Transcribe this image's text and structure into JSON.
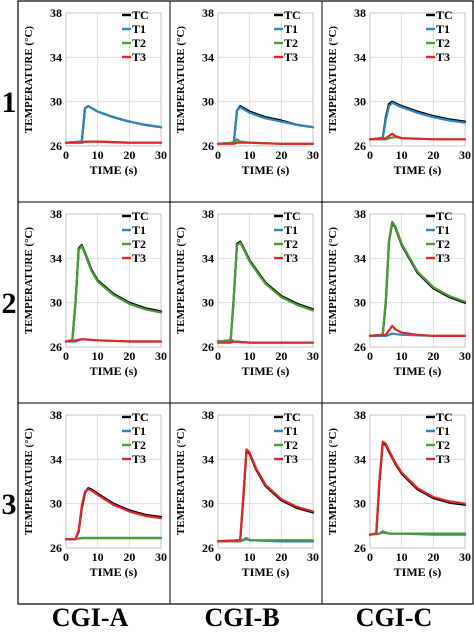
{
  "figure": {
    "row_labels": [
      "1",
      "2",
      "3"
    ],
    "column_labels": [
      "CGI-A",
      "CGI-B",
      "CGI-C"
    ]
  },
  "legend_entries": [
    "TC",
    "T1",
    "T2",
    "T3"
  ],
  "colors": {
    "TC": "#000000",
    "T1": "#2e86c1",
    "T2": "#4a9a3a",
    "T3": "#e0262a"
  },
  "chart_data": [
    {
      "type": "line",
      "row": "1",
      "column": "CGI-A",
      "xlabel": "TIME (s)",
      "ylabel": "TEMPERATURE (°C)",
      "xlim": [
        0,
        30
      ],
      "ylim": [
        26,
        38
      ],
      "xticks": [
        0,
        10,
        20,
        30
      ],
      "yticks": [
        26,
        30,
        34,
        38
      ],
      "grid": true,
      "legend": "top-right",
      "series": [
        {
          "name": "TC",
          "x": [
            0,
            5,
            6,
            7,
            10,
            15,
            20,
            25,
            30
          ],
          "y": [
            26.3,
            26.4,
            29.4,
            29.6,
            29.1,
            28.6,
            28.2,
            27.9,
            27.7
          ]
        },
        {
          "name": "T1",
          "x": [
            0,
            5,
            6,
            7,
            10,
            15,
            20,
            25,
            30
          ],
          "y": [
            26.3,
            26.4,
            29.4,
            29.6,
            29.1,
            28.6,
            28.2,
            27.9,
            27.7
          ]
        },
        {
          "name": "T2",
          "x": [
            0,
            5,
            6,
            10,
            20,
            30
          ],
          "y": [
            26.3,
            26.3,
            26.4,
            26.4,
            26.3,
            26.3
          ]
        },
        {
          "name": "T3",
          "x": [
            0,
            5,
            6,
            10,
            20,
            30
          ],
          "y": [
            26.3,
            26.3,
            26.4,
            26.4,
            26.3,
            26.3
          ]
        }
      ]
    },
    {
      "type": "line",
      "row": "1",
      "column": "CGI-B",
      "xlabel": "TIME (s)",
      "ylabel": "TEMPERATURE (°C)",
      "xlim": [
        0,
        30
      ],
      "ylim": [
        26,
        38
      ],
      "xticks": [
        0,
        10,
        20,
        30
      ],
      "yticks": [
        26,
        30,
        34,
        38
      ],
      "grid": true,
      "legend": "top-right",
      "series": [
        {
          "name": "TC",
          "x": [
            0,
            5,
            6,
            7,
            10,
            15,
            20,
            25,
            30
          ],
          "y": [
            26.2,
            26.3,
            29.2,
            29.6,
            29.1,
            28.6,
            28.3,
            27.9,
            27.7
          ]
        },
        {
          "name": "T1",
          "x": [
            0,
            5,
            6,
            7,
            10,
            15,
            20,
            25,
            30
          ],
          "y": [
            26.2,
            26.3,
            29.2,
            29.5,
            29.0,
            28.5,
            28.2,
            27.9,
            27.7
          ]
        },
        {
          "name": "T2",
          "x": [
            0,
            5,
            6,
            7,
            10,
            20,
            30
          ],
          "y": [
            26.2,
            26.3,
            26.6,
            26.4,
            26.3,
            26.2,
            26.2
          ]
        },
        {
          "name": "T3",
          "x": [
            0,
            5,
            6,
            10,
            20,
            30
          ],
          "y": [
            26.2,
            26.2,
            26.3,
            26.3,
            26.2,
            26.2
          ]
        }
      ]
    },
    {
      "type": "line",
      "row": "1",
      "column": "CGI-C",
      "xlabel": "TIME (s)",
      "ylabel": "TEMPERATURE (°C)",
      "xlim": [
        0,
        30
      ],
      "ylim": [
        26,
        38
      ],
      "xticks": [
        0,
        10,
        20,
        30
      ],
      "yticks": [
        26,
        30,
        34,
        38
      ],
      "grid": true,
      "legend": "top-right",
      "series": [
        {
          "name": "TC",
          "x": [
            0,
            4,
            5,
            6,
            7,
            10,
            15,
            20,
            25,
            30
          ],
          "y": [
            26.6,
            26.7,
            28.6,
            29.8,
            30.0,
            29.6,
            29.1,
            28.7,
            28.4,
            28.2
          ]
        },
        {
          "name": "T1",
          "x": [
            0,
            4,
            5,
            6,
            7,
            10,
            15,
            20,
            25,
            30
          ],
          "y": [
            26.6,
            26.7,
            28.4,
            29.6,
            29.9,
            29.5,
            29.0,
            28.6,
            28.3,
            28.1
          ]
        },
        {
          "name": "T2",
          "x": [
            0,
            5,
            6,
            8,
            10,
            20,
            30
          ],
          "y": [
            26.6,
            26.6,
            26.7,
            26.8,
            26.7,
            26.6,
            26.6
          ]
        },
        {
          "name": "T3",
          "x": [
            0,
            5,
            6,
            7,
            8,
            10,
            20,
            30
          ],
          "y": [
            26.6,
            26.7,
            26.9,
            27.1,
            26.9,
            26.7,
            26.6,
            26.6
          ]
        }
      ]
    },
    {
      "type": "line",
      "row": "2",
      "column": "CGI-A",
      "xlabel": "TIME (s)",
      "ylabel": "TEMPERATURE (°C)",
      "xlim": [
        0,
        30
      ],
      "ylim": [
        26,
        38
      ],
      "xticks": [
        0,
        10,
        20,
        30
      ],
      "yticks": [
        26,
        30,
        34,
        38
      ],
      "grid": true,
      "legend": "top-right",
      "series": [
        {
          "name": "TC",
          "x": [
            0,
            2,
            3,
            4,
            5,
            6,
            8,
            10,
            15,
            20,
            25,
            30
          ],
          "y": [
            26.5,
            26.6,
            30.0,
            34.9,
            35.2,
            34.5,
            33.0,
            32.0,
            30.8,
            30.0,
            29.5,
            29.2
          ]
        },
        {
          "name": "T1",
          "x": [
            0,
            3,
            5,
            10,
            20,
            30
          ],
          "y": [
            26.5,
            26.5,
            26.7,
            26.6,
            26.5,
            26.5
          ]
        },
        {
          "name": "T2",
          "x": [
            0,
            2,
            3,
            4,
            5,
            6,
            8,
            10,
            15,
            20,
            25,
            30
          ],
          "y": [
            26.5,
            26.6,
            30.0,
            34.8,
            35.1,
            34.4,
            32.9,
            31.9,
            30.7,
            29.9,
            29.4,
            29.1
          ]
        },
        {
          "name": "T3",
          "x": [
            0,
            3,
            5,
            10,
            20,
            30
          ],
          "y": [
            26.5,
            26.6,
            26.7,
            26.6,
            26.5,
            26.5
          ]
        }
      ]
    },
    {
      "type": "line",
      "row": "2",
      "column": "CGI-B",
      "xlabel": "TIME (s)",
      "ylabel": "TEMPERATURE (°C)",
      "xlim": [
        0,
        30
      ],
      "ylim": [
        26,
        38
      ],
      "xticks": [
        0,
        10,
        20,
        30
      ],
      "yticks": [
        26,
        30,
        34,
        38
      ],
      "grid": true,
      "legend": "top-right",
      "series": [
        {
          "name": "TC",
          "x": [
            0,
            4,
            5,
            6,
            7,
            8,
            10,
            15,
            20,
            25,
            30
          ],
          "y": [
            26.5,
            26.6,
            30.5,
            35.3,
            35.5,
            35.0,
            33.8,
            31.8,
            30.6,
            29.9,
            29.4
          ]
        },
        {
          "name": "T1",
          "x": [
            0,
            3,
            4,
            5,
            10,
            20,
            30
          ],
          "y": [
            26.4,
            26.5,
            26.7,
            26.5,
            26.4,
            26.4,
            26.4
          ]
        },
        {
          "name": "T2",
          "x": [
            0,
            4,
            5,
            6,
            7,
            8,
            10,
            15,
            20,
            25,
            30
          ],
          "y": [
            26.5,
            26.6,
            30.4,
            35.2,
            35.4,
            34.9,
            33.7,
            31.7,
            30.5,
            29.8,
            29.3
          ]
        },
        {
          "name": "T3",
          "x": [
            0,
            4,
            5,
            10,
            20,
            30
          ],
          "y": [
            26.4,
            26.4,
            26.5,
            26.4,
            26.4,
            26.4
          ]
        }
      ]
    },
    {
      "type": "line",
      "row": "2",
      "column": "CGI-C",
      "xlabel": "TIME (s)",
      "ylabel": "TEMPERATURE (°C)",
      "xlim": [
        0,
        30
      ],
      "ylim": [
        26,
        38
      ],
      "xticks": [
        0,
        10,
        20,
        30
      ],
      "yticks": [
        26,
        30,
        34,
        38
      ],
      "grid": true,
      "legend": "top-right",
      "series": [
        {
          "name": "TC",
          "x": [
            0,
            4,
            5,
            6,
            7,
            8,
            10,
            15,
            20,
            25,
            30
          ],
          "y": [
            27.0,
            27.1,
            30.0,
            35.5,
            37.2,
            36.8,
            35.2,
            32.7,
            31.3,
            30.5,
            30.0
          ]
        },
        {
          "name": "T1",
          "x": [
            0,
            5,
            7,
            10,
            20,
            30
          ],
          "y": [
            27.0,
            27.0,
            27.2,
            27.1,
            27.0,
            27.0
          ]
        },
        {
          "name": "T2",
          "x": [
            0,
            4,
            5,
            6,
            7,
            8,
            10,
            15,
            20,
            25,
            30
          ],
          "y": [
            27.0,
            27.1,
            30.2,
            35.6,
            37.3,
            36.9,
            35.3,
            32.8,
            31.4,
            30.6,
            30.1
          ]
        },
        {
          "name": "T3",
          "x": [
            0,
            5,
            6,
            7,
            8,
            10,
            15,
            20,
            30
          ],
          "y": [
            27.0,
            27.1,
            27.5,
            27.9,
            27.6,
            27.3,
            27.1,
            27.0,
            27.0
          ]
        }
      ]
    },
    {
      "type": "line",
      "row": "3",
      "column": "CGI-A",
      "xlabel": "TIME (s)",
      "ylabel": "TEMPERATURE (°C)",
      "xlim": [
        0,
        30
      ],
      "ylim": [
        26,
        38
      ],
      "xticks": [
        0,
        10,
        20,
        30
      ],
      "yticks": [
        26,
        30,
        34,
        38
      ],
      "grid": true,
      "legend": "top-right",
      "series": [
        {
          "name": "TC",
          "x": [
            0,
            3,
            4,
            5,
            6,
            7,
            8,
            10,
            15,
            20,
            25,
            30
          ],
          "y": [
            26.8,
            26.8,
            27.5,
            29.6,
            31.0,
            31.4,
            31.3,
            30.9,
            30.0,
            29.4,
            29.0,
            28.8
          ]
        },
        {
          "name": "T1",
          "x": [
            0,
            3,
            5,
            10,
            20,
            30
          ],
          "y": [
            26.8,
            26.8,
            26.9,
            26.9,
            26.9,
            26.9
          ]
        },
        {
          "name": "T2",
          "x": [
            0,
            3,
            5,
            10,
            20,
            30
          ],
          "y": [
            26.8,
            26.8,
            26.9,
            26.9,
            26.9,
            26.9
          ]
        },
        {
          "name": "T3",
          "x": [
            0,
            3,
            4,
            5,
            6,
            7,
            8,
            10,
            15,
            20,
            25,
            30
          ],
          "y": [
            26.8,
            26.8,
            27.6,
            29.8,
            31.1,
            31.3,
            31.2,
            30.8,
            29.9,
            29.3,
            28.9,
            28.7
          ]
        }
      ]
    },
    {
      "type": "line",
      "row": "3",
      "column": "CGI-B",
      "xlabel": "TIME (s)",
      "ylabel": "TEMPERATURE (°C)",
      "xlim": [
        0,
        30
      ],
      "ylim": [
        26,
        38
      ],
      "xticks": [
        0,
        10,
        20,
        30
      ],
      "yticks": [
        26,
        30,
        34,
        38
      ],
      "grid": true,
      "legend": "top-right",
      "series": [
        {
          "name": "TC",
          "x": [
            0,
            7,
            8,
            9,
            10,
            12,
            15,
            20,
            25,
            30
          ],
          "y": [
            26.6,
            26.7,
            30.5,
            34.8,
            34.5,
            33.1,
            31.6,
            30.3,
            29.6,
            29.2
          ]
        },
        {
          "name": "T1",
          "x": [
            0,
            7,
            9,
            10,
            20,
            30
          ],
          "y": [
            26.6,
            26.6,
            26.8,
            26.7,
            26.6,
            26.6
          ]
        },
        {
          "name": "T2",
          "x": [
            0,
            7,
            9,
            10,
            20,
            30
          ],
          "y": [
            26.6,
            26.6,
            26.9,
            26.7,
            26.7,
            26.7
          ]
        },
        {
          "name": "T3",
          "x": [
            0,
            7,
            8,
            9,
            10,
            12,
            15,
            20,
            25,
            30
          ],
          "y": [
            26.6,
            26.7,
            30.6,
            34.9,
            34.6,
            33.2,
            31.7,
            30.4,
            29.7,
            29.3
          ]
        }
      ]
    },
    {
      "type": "line",
      "row": "3",
      "column": "CGI-C",
      "xlabel": "TIME (s)",
      "ylabel": "TEMPERATURE (°C)",
      "xlim": [
        0,
        30
      ],
      "ylim": [
        26,
        38
      ],
      "xticks": [
        0,
        10,
        20,
        30
      ],
      "yticks": [
        26,
        30,
        34,
        38
      ],
      "grid": true,
      "legend": "top-right",
      "series": [
        {
          "name": "TC",
          "x": [
            0,
            2,
            3,
            4,
            5,
            6,
            8,
            10,
            15,
            20,
            25,
            30
          ],
          "y": [
            27.2,
            27.3,
            32.0,
            35.4,
            35.3,
            34.7,
            33.6,
            32.7,
            31.3,
            30.5,
            30.1,
            29.9
          ]
        },
        {
          "name": "T1",
          "x": [
            0,
            3,
            4,
            6,
            10,
            20,
            30
          ],
          "y": [
            27.2,
            27.3,
            27.5,
            27.3,
            27.3,
            27.2,
            27.2
          ]
        },
        {
          "name": "T2",
          "x": [
            0,
            3,
            4,
            6,
            10,
            20,
            30
          ],
          "y": [
            27.2,
            27.3,
            27.4,
            27.3,
            27.3,
            27.3,
            27.3
          ]
        },
        {
          "name": "T3",
          "x": [
            0,
            2,
            3,
            4,
            5,
            6,
            8,
            10,
            15,
            20,
            25,
            30
          ],
          "y": [
            27.2,
            27.3,
            32.2,
            35.6,
            35.4,
            34.8,
            33.7,
            32.8,
            31.4,
            30.6,
            30.2,
            30.0
          ]
        }
      ]
    }
  ]
}
